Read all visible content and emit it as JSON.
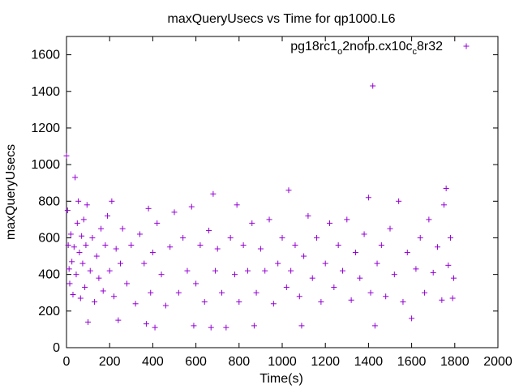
{
  "chart_data": {
    "type": "scatter",
    "title": "maxQueryUsecs vs Time for qp1000.L6",
    "xlabel": "Time(s)",
    "ylabel": "maxQueryUsecs",
    "xlim": [
      0,
      2000
    ],
    "ylim": [
      0,
      1700
    ],
    "xticks": [
      0,
      200,
      400,
      600,
      800,
      1000,
      1200,
      1400,
      1600,
      1800,
      2000
    ],
    "yticks": [
      0,
      200,
      400,
      600,
      800,
      1000,
      1200,
      1400,
      1600
    ],
    "grid": false,
    "legend_position": "top-right",
    "series_color": "#9400d3",
    "marker": "plus",
    "series": [
      {
        "name_parts": {
          "a": "pg18rc1",
          "b": "o",
          "c": "2nofp.cx10c",
          "d": "c",
          "e": "8r32"
        },
        "points": [
          [
            0,
            1048
          ],
          [
            5,
            750
          ],
          [
            8,
            560
          ],
          [
            12,
            430
          ],
          [
            15,
            350
          ],
          [
            20,
            620
          ],
          [
            25,
            470
          ],
          [
            30,
            290
          ],
          [
            35,
            550
          ],
          [
            40,
            930
          ],
          [
            45,
            400
          ],
          [
            50,
            680
          ],
          [
            55,
            800
          ],
          [
            60,
            520
          ],
          [
            65,
            270
          ],
          [
            70,
            610
          ],
          [
            75,
            460
          ],
          [
            80,
            700
          ],
          [
            85,
            330
          ],
          [
            90,
            560
          ],
          [
            95,
            780
          ],
          [
            100,
            140
          ],
          [
            110,
            420
          ],
          [
            120,
            600
          ],
          [
            130,
            250
          ],
          [
            140,
            500
          ],
          [
            150,
            380
          ],
          [
            160,
            650
          ],
          [
            170,
            310
          ],
          [
            180,
            560
          ],
          [
            190,
            720
          ],
          [
            200,
            420
          ],
          [
            210,
            800
          ],
          [
            220,
            280
          ],
          [
            230,
            540
          ],
          [
            240,
            150
          ],
          [
            250,
            460
          ],
          [
            260,
            650
          ],
          [
            280,
            350
          ],
          [
            300,
            560
          ],
          [
            320,
            240
          ],
          [
            340,
            620
          ],
          [
            360,
            460
          ],
          [
            370,
            130
          ],
          [
            380,
            760
          ],
          [
            390,
            300
          ],
          [
            400,
            520
          ],
          [
            410,
            110
          ],
          [
            420,
            680
          ],
          [
            440,
            400
          ],
          [
            460,
            230
          ],
          [
            480,
            550
          ],
          [
            500,
            740
          ],
          [
            520,
            300
          ],
          [
            540,
            600
          ],
          [
            560,
            420
          ],
          [
            580,
            770
          ],
          [
            590,
            120
          ],
          [
            600,
            350
          ],
          [
            620,
            560
          ],
          [
            640,
            250
          ],
          [
            660,
            640
          ],
          [
            670,
            110
          ],
          [
            680,
            840
          ],
          [
            690,
            420
          ],
          [
            700,
            540
          ],
          [
            720,
            300
          ],
          [
            740,
            110
          ],
          [
            760,
            600
          ],
          [
            780,
            400
          ],
          [
            790,
            780
          ],
          [
            800,
            250
          ],
          [
            820,
            560
          ],
          [
            840,
            420
          ],
          [
            860,
            680
          ],
          [
            870,
            120
          ],
          [
            880,
            300
          ],
          [
            900,
            540
          ],
          [
            920,
            420
          ],
          [
            940,
            700
          ],
          [
            960,
            240
          ],
          [
            980,
            460
          ],
          [
            1000,
            600
          ],
          [
            1020,
            330
          ],
          [
            1030,
            860
          ],
          [
            1040,
            420
          ],
          [
            1060,
            560
          ],
          [
            1080,
            280
          ],
          [
            1090,
            120
          ],
          [
            1100,
            500
          ],
          [
            1120,
            720
          ],
          [
            1140,
            380
          ],
          [
            1160,
            600
          ],
          [
            1180,
            250
          ],
          [
            1200,
            460
          ],
          [
            1220,
            680
          ],
          [
            1240,
            330
          ],
          [
            1260,
            560
          ],
          [
            1280,
            420
          ],
          [
            1300,
            700
          ],
          [
            1320,
            260
          ],
          [
            1340,
            520
          ],
          [
            1360,
            380
          ],
          [
            1380,
            620
          ],
          [
            1400,
            820
          ],
          [
            1410,
            300
          ],
          [
            1420,
            1430
          ],
          [
            1430,
            120
          ],
          [
            1440,
            460
          ],
          [
            1460,
            560
          ],
          [
            1480,
            280
          ],
          [
            1500,
            650
          ],
          [
            1520,
            400
          ],
          [
            1540,
            800
          ],
          [
            1560,
            250
          ],
          [
            1580,
            520
          ],
          [
            1600,
            160
          ],
          [
            1620,
            430
          ],
          [
            1640,
            600
          ],
          [
            1660,
            300
          ],
          [
            1680,
            700
          ],
          [
            1700,
            410
          ],
          [
            1720,
            550
          ],
          [
            1740,
            260
          ],
          [
            1750,
            780
          ],
          [
            1760,
            870
          ],
          [
            1770,
            450
          ],
          [
            1780,
            600
          ],
          [
            1790,
            270
          ],
          [
            1795,
            380
          ]
        ]
      }
    ]
  }
}
